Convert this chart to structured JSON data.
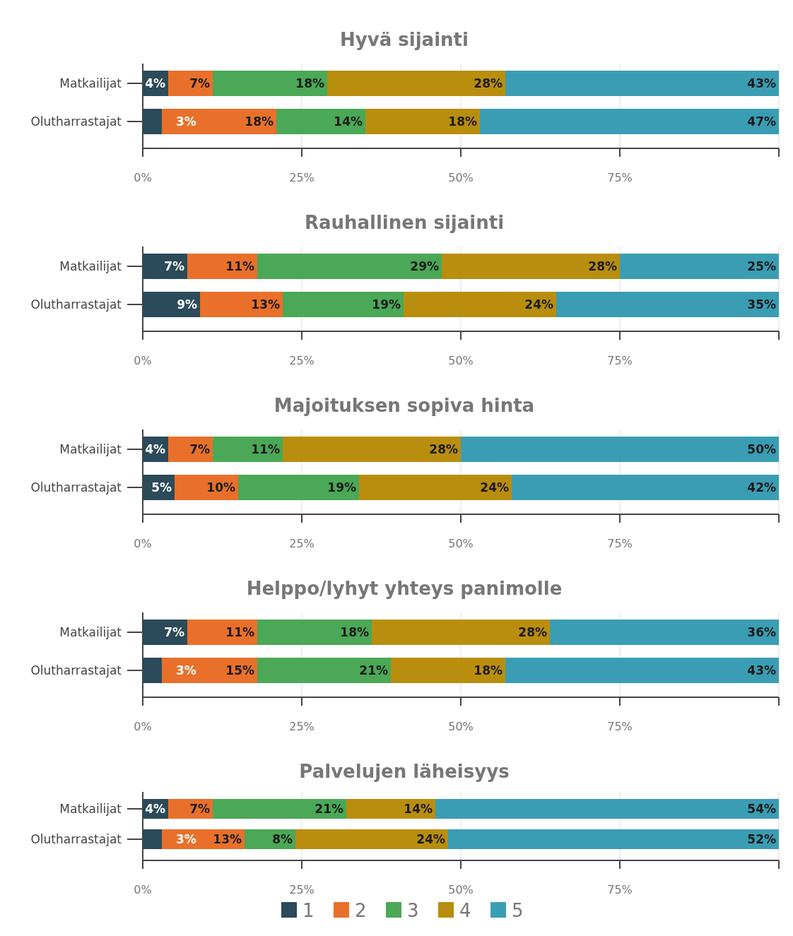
{
  "chart_data": [
    {
      "type": "bar",
      "orientation": "horizontal",
      "stacked": true,
      "title": "Hyvä sijainti",
      "categories": [
        "Matkailijat",
        "Olutharrastajat"
      ],
      "xlim": [
        0,
        100
      ],
      "xticks": [
        {
          "value": 0,
          "label": "0%"
        },
        {
          "value": 25,
          "label": "25%"
        },
        {
          "value": 50,
          "label": "50%"
        },
        {
          "value": 75,
          "label": "75%"
        },
        {
          "value": 100,
          "label": null
        }
      ],
      "grid": "x",
      "series": [
        {
          "color": "#2b4a5a",
          "values": [
            4,
            3
          ],
          "value_labels": [
            "4%",
            "3%"
          ]
        },
        {
          "color": "#e8702a",
          "values": [
            7,
            18
          ],
          "value_labels": [
            "7%",
            "18%"
          ]
        },
        {
          "color": "#4aa856",
          "values": [
            18,
            14
          ],
          "value_labels": [
            "18%",
            "14%"
          ]
        },
        {
          "color": "#b98e0e",
          "values": [
            28,
            18
          ],
          "value_labels": [
            "28%",
            "18%"
          ]
        },
        {
          "color": "#3a9db4",
          "values": [
            43,
            47
          ],
          "value_labels": [
            "43%",
            "47%"
          ]
        }
      ]
    },
    {
      "type": "bar",
      "orientation": "horizontal",
      "stacked": true,
      "title": "Rauhallinen sijainti",
      "categories": [
        "Matkailijat",
        "Olutharrastajat"
      ],
      "xlim": [
        0,
        100
      ],
      "xticks": [
        {
          "value": 0,
          "label": "0%"
        },
        {
          "value": 25,
          "label": "25%"
        },
        {
          "value": 50,
          "label": "50%"
        },
        {
          "value": 75,
          "label": "75%"
        },
        {
          "value": 100,
          "label": null
        }
      ],
      "grid": "x",
      "series": [
        {
          "color": "#2b4a5a",
          "values": [
            7,
            9
          ],
          "value_labels": [
            "7%",
            "9%"
          ]
        },
        {
          "color": "#e8702a",
          "values": [
            11,
            13
          ],
          "value_labels": [
            "11%",
            "13%"
          ]
        },
        {
          "color": "#4aa856",
          "values": [
            29,
            19
          ],
          "value_labels": [
            "29%",
            "19%"
          ]
        },
        {
          "color": "#b98e0e",
          "values": [
            28,
            24
          ],
          "value_labels": [
            "28%",
            "24%"
          ]
        },
        {
          "color": "#3a9db4",
          "values": [
            25,
            35
          ],
          "value_labels": [
            "25%",
            "35%"
          ]
        }
      ]
    },
    {
      "type": "bar",
      "orientation": "horizontal",
      "stacked": true,
      "title": "Majoituksen sopiva hinta",
      "categories": [
        "Matkailijat",
        "Olutharrastajat"
      ],
      "xlim": [
        0,
        100
      ],
      "xticks": [
        {
          "value": 0,
          "label": "0%"
        },
        {
          "value": 25,
          "label": "25%"
        },
        {
          "value": 50,
          "label": "50%"
        },
        {
          "value": 75,
          "label": "75%"
        },
        {
          "value": 100,
          "label": null
        }
      ],
      "grid": "x",
      "series": [
        {
          "color": "#2b4a5a",
          "values": [
            4,
            5
          ],
          "value_labels": [
            "4%",
            "5%"
          ]
        },
        {
          "color": "#e8702a",
          "values": [
            7,
            10
          ],
          "value_labels": [
            "7%",
            "10%"
          ]
        },
        {
          "color": "#4aa856",
          "values": [
            11,
            19
          ],
          "value_labels": [
            "11%",
            "19%"
          ]
        },
        {
          "color": "#b98e0e",
          "values": [
            28,
            24
          ],
          "value_labels": [
            "28%",
            "24%"
          ]
        },
        {
          "color": "#3a9db4",
          "values": [
            50,
            42
          ],
          "value_labels": [
            "50%",
            "42%"
          ]
        }
      ]
    },
    {
      "type": "bar",
      "orientation": "horizontal",
      "stacked": true,
      "title": "Helppo/lyhyt yhteys panimolle",
      "categories": [
        "Matkailijat",
        "Olutharrastajat"
      ],
      "xlim": [
        0,
        100
      ],
      "xticks": [
        {
          "value": 0,
          "label": "0%"
        },
        {
          "value": 25,
          "label": "25%"
        },
        {
          "value": 50,
          "label": "50%"
        },
        {
          "value": 75,
          "label": "75%"
        },
        {
          "value": 100,
          "label": null
        }
      ],
      "grid": "x",
      "series": [
        {
          "color": "#2b4a5a",
          "values": [
            7,
            3
          ],
          "value_labels": [
            "7%",
            "3%"
          ]
        },
        {
          "color": "#e8702a",
          "values": [
            11,
            15
          ],
          "value_labels": [
            "11%",
            "15%"
          ]
        },
        {
          "color": "#4aa856",
          "values": [
            18,
            21
          ],
          "value_labels": [
            "18%",
            "21%"
          ]
        },
        {
          "color": "#b98e0e",
          "values": [
            28,
            18
          ],
          "value_labels": [
            "28%",
            "18%"
          ]
        },
        {
          "color": "#3a9db4",
          "values": [
            36,
            43
          ],
          "value_labels": [
            "36%",
            "43%"
          ]
        }
      ]
    },
    {
      "type": "bar",
      "orientation": "horizontal",
      "stacked": true,
      "title": "Palvelujen läheisyys",
      "categories": [
        "Matkailijat",
        "Olutharrastajat"
      ],
      "xlim": [
        0,
        100
      ],
      "xticks": [
        {
          "value": 0,
          "label": "0%"
        },
        {
          "value": 25,
          "label": "25%"
        },
        {
          "value": 50,
          "label": "50%"
        },
        {
          "value": 75,
          "label": "75%"
        },
        {
          "value": 100,
          "label": null
        }
      ],
      "grid": "x",
      "legend": "bottom",
      "series": [
        {
          "name": "1",
          "color": "#2b4a5a",
          "values": [
            4,
            3
          ],
          "value_labels": [
            "4%",
            "3%"
          ]
        },
        {
          "name": "2",
          "color": "#e8702a",
          "values": [
            7,
            13
          ],
          "value_labels": [
            "7%",
            "13%"
          ]
        },
        {
          "name": "3",
          "color": "#4aa856",
          "values": [
            21,
            8
          ],
          "value_labels": [
            "21%",
            "8%"
          ]
        },
        {
          "name": "4",
          "color": "#b98e0e",
          "values": [
            14,
            24
          ],
          "value_labels": [
            "14%",
            "24%"
          ]
        },
        {
          "name": "5",
          "color": "#3a9db4",
          "values": [
            54,
            52
          ],
          "value_labels": [
            "54%",
            "52%"
          ]
        }
      ]
    }
  ]
}
